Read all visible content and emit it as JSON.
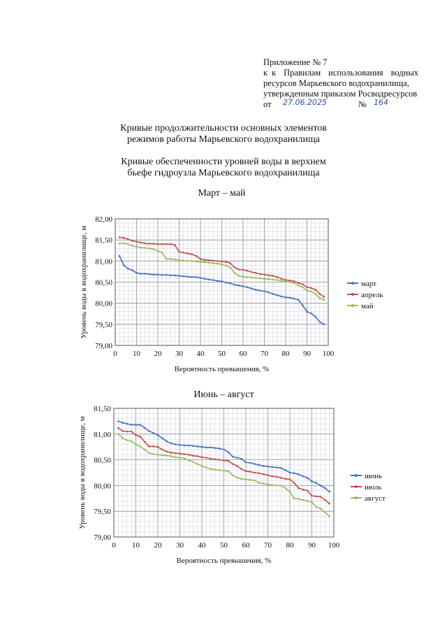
{
  "header": {
    "annex": "Приложение № 7",
    "line1": "к Правилам использования водных",
    "line2": "ресурсов Марьевского водохранилища,",
    "line3": "утвержденным приказом Росводресурсов",
    "from": "от",
    "date": "27.06.2025",
    "no_sign": "№",
    "number": "164"
  },
  "title": "Кривые продолжительности основных элементов режимов работы Марьевского водохранилища",
  "subtitle": "Кривые обеспеченности уровней воды в верхнем бьефе гидроузла Марьевского водохранилища",
  "chart_data": [
    {
      "type": "line",
      "title": "Март – май",
      "xlabel": "Вероятность превышения, %",
      "ylabel": "Уровень воды в водохранилище, м",
      "x": [
        2,
        4,
        6,
        8,
        10,
        12,
        14,
        16,
        18,
        20,
        22,
        24,
        26,
        28,
        30,
        32,
        34,
        36,
        38,
        40,
        42,
        44,
        46,
        48,
        50,
        52,
        54,
        56,
        58,
        60,
        62,
        64,
        66,
        68,
        70,
        72,
        74,
        76,
        78,
        80,
        82,
        84,
        86,
        88,
        90,
        92,
        94,
        96,
        98
      ],
      "series": [
        {
          "name": "март",
          "color": "#4472c4",
          "values": [
            81.12,
            80.9,
            80.82,
            80.78,
            80.72,
            80.7,
            80.7,
            80.69,
            80.68,
            80.68,
            80.67,
            80.67,
            80.66,
            80.66,
            80.65,
            80.64,
            80.63,
            80.62,
            80.62,
            80.6,
            80.58,
            80.56,
            80.55,
            80.53,
            80.52,
            80.49,
            80.47,
            80.44,
            80.42,
            80.4,
            80.38,
            80.35,
            80.32,
            80.3,
            80.28,
            80.26,
            80.22,
            80.19,
            80.16,
            80.14,
            80.13,
            80.11,
            80.08,
            79.95,
            79.8,
            79.76,
            79.68,
            79.56,
            79.5
          ]
        },
        {
          "name": "апрель",
          "color": "#c0504d",
          "values": [
            81.56,
            81.55,
            81.52,
            81.48,
            81.46,
            81.44,
            81.42,
            81.41,
            81.41,
            81.4,
            81.4,
            81.4,
            81.4,
            81.38,
            81.22,
            81.2,
            81.18,
            81.16,
            81.12,
            81.05,
            81.03,
            81.02,
            81.01,
            81.0,
            80.99,
            80.98,
            80.95,
            80.85,
            80.8,
            80.79,
            80.77,
            80.74,
            80.72,
            80.69,
            80.68,
            80.66,
            80.65,
            80.62,
            80.58,
            80.55,
            80.54,
            80.52,
            80.48,
            80.45,
            80.38,
            80.36,
            80.32,
            80.22,
            80.15
          ]
        },
        {
          "name": "май",
          "color": "#9bbb59",
          "values": [
            81.42,
            81.42,
            81.4,
            81.36,
            81.34,
            81.32,
            81.31,
            81.3,
            81.28,
            81.24,
            81.2,
            81.05,
            81.05,
            81.04,
            81.02,
            81.01,
            81.0,
            81.0,
            80.99,
            80.98,
            80.97,
            80.96,
            80.95,
            80.94,
            80.92,
            80.89,
            80.85,
            80.72,
            80.65,
            80.63,
            80.62,
            80.61,
            80.6,
            80.59,
            80.58,
            80.57,
            80.56,
            80.55,
            80.53,
            80.52,
            80.5,
            80.48,
            80.42,
            80.38,
            80.3,
            80.28,
            80.22,
            80.12,
            80.08
          ]
        }
      ],
      "xlim": [
        0,
        100
      ],
      "xticks": [
        0,
        10,
        20,
        30,
        40,
        50,
        60,
        70,
        80,
        90,
        100
      ],
      "ylim": [
        79,
        82
      ],
      "yticks": [
        {
          "value": 79,
          "label": "79,00"
        },
        {
          "value": 79.5,
          "label": "79,50"
        },
        {
          "value": 80,
          "label": "80,00"
        },
        {
          "value": 80.5,
          "label": "80,50"
        },
        {
          "value": 81,
          "label": "81,00"
        },
        {
          "value": 81.5,
          "label": "81,50"
        },
        {
          "value": 82,
          "label": "82,00"
        }
      ],
      "grid": true,
      "legend": "right"
    },
    {
      "type": "line",
      "title": "Июнь – август",
      "xlabel": "Вероятность превышения, %",
      "ylabel": "Уровень воды в водохранилище, м",
      "x": [
        2,
        4,
        6,
        8,
        10,
        12,
        14,
        16,
        18,
        20,
        22,
        24,
        26,
        28,
        30,
        32,
        34,
        36,
        38,
        40,
        42,
        44,
        46,
        48,
        50,
        52,
        54,
        56,
        58,
        60,
        62,
        64,
        66,
        68,
        70,
        72,
        74,
        76,
        78,
        80,
        82,
        84,
        86,
        88,
        90,
        92,
        94,
        96,
        98
      ],
      "series": [
        {
          "name": "июнь",
          "color": "#4472c4",
          "values": [
            81.25,
            81.22,
            81.2,
            81.18,
            81.18,
            81.18,
            81.12,
            81.06,
            81.02,
            80.98,
            80.92,
            80.86,
            80.82,
            80.8,
            80.79,
            80.78,
            80.78,
            80.77,
            80.76,
            80.75,
            80.74,
            80.74,
            80.73,
            80.72,
            80.7,
            80.65,
            80.56,
            80.54,
            80.52,
            80.45,
            80.44,
            80.42,
            80.4,
            80.38,
            80.37,
            80.36,
            80.35,
            80.34,
            80.3,
            80.25,
            80.24,
            80.22,
            80.18,
            80.15,
            80.08,
            80.05,
            80.0,
            79.95,
            79.88
          ]
        },
        {
          "name": "июль",
          "color": "#c0504d",
          "values": [
            81.12,
            81.06,
            81.05,
            81.05,
            80.98,
            80.95,
            80.85,
            80.76,
            80.76,
            80.75,
            80.7,
            80.66,
            80.64,
            80.63,
            80.62,
            80.61,
            80.6,
            80.58,
            80.57,
            80.55,
            80.54,
            80.52,
            80.51,
            80.5,
            80.49,
            80.48,
            80.42,
            80.38,
            80.32,
            80.28,
            80.27,
            80.25,
            80.24,
            80.22,
            80.2,
            80.18,
            80.17,
            80.15,
            80.13,
            80.12,
            80.05,
            79.95,
            79.92,
            79.9,
            79.8,
            79.79,
            79.78,
            79.72,
            79.65
          ]
        },
        {
          "name": "август",
          "color": "#9bbb59",
          "values": [
            81.0,
            80.92,
            80.88,
            80.86,
            80.8,
            80.76,
            80.7,
            80.63,
            80.61,
            80.6,
            80.59,
            80.58,
            80.57,
            80.55,
            80.54,
            80.53,
            80.49,
            80.46,
            80.42,
            80.38,
            80.35,
            80.32,
            80.31,
            80.3,
            80.29,
            80.28,
            80.2,
            80.15,
            80.13,
            80.12,
            80.11,
            80.1,
            80.05,
            80.04,
            80.02,
            80.01,
            80.0,
            80.0,
            79.95,
            79.88,
            79.75,
            79.74,
            79.72,
            79.7,
            79.68,
            79.58,
            79.55,
            79.48,
            79.4
          ]
        }
      ],
      "xlim": [
        0,
        100
      ],
      "xticks": [
        0,
        10,
        20,
        30,
        40,
        50,
        60,
        70,
        80,
        90,
        100
      ],
      "ylim": [
        79,
        81.5
      ],
      "yticks": [
        {
          "value": 79,
          "label": "79,00"
        },
        {
          "value": 79.5,
          "label": "79,50"
        },
        {
          "value": 80,
          "label": "80,00"
        },
        {
          "value": 80.5,
          "label": "80,50"
        },
        {
          "value": 81,
          "label": "81,00"
        },
        {
          "value": 81.5,
          "label": "81,50"
        }
      ],
      "grid": true,
      "legend": "right"
    }
  ]
}
